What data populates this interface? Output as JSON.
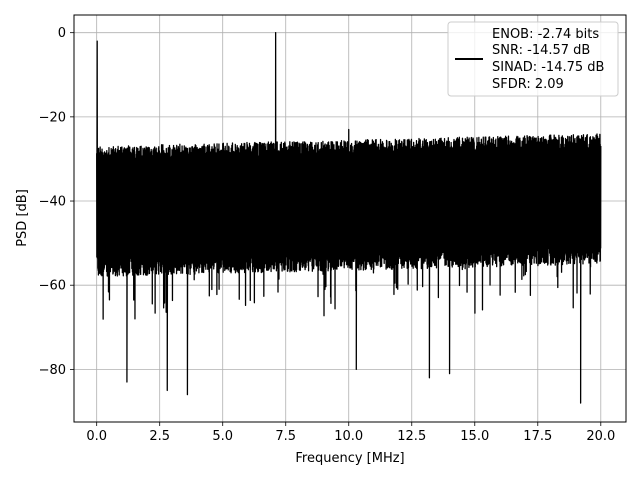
{
  "chart_data": {
    "type": "line",
    "title": "",
    "xlabel": "Frequency [MHz]",
    "ylabel": "PSD [dB]",
    "xlim": [
      -0.9,
      21.0
    ],
    "ylim": [
      -92.5,
      4.2
    ],
    "grid": true,
    "legend_position": "top-right",
    "x_ticks": [
      0.0,
      2.5,
      5.0,
      7.5,
      10.0,
      12.5,
      15.0,
      17.5,
      20.0
    ],
    "x_tick_labels": [
      "0.0",
      "2.5",
      "5.0",
      "7.5",
      "10.0",
      "12.5",
      "15.0",
      "17.5",
      "20.0"
    ],
    "y_ticks": [
      0,
      -20,
      -40,
      -60,
      -80
    ],
    "y_tick_labels": [
      "0",
      "−20",
      "−40",
      "−60",
      "−80"
    ],
    "series": [
      {
        "name": "ENOB: -2.74 bits\nSNR: -14.57 dB\nSINAD: -14.75 dB\nSFDR: 2.09",
        "color": "#000000",
        "x_range": [
          0.0,
          20.0
        ],
        "noise_floor_top_db": -27,
        "noise_floor_bottom_db": -60,
        "tones": [
          {
            "x": 0.02,
            "y": -2
          },
          {
            "x": 7.1,
            "y": 0
          },
          {
            "x": 10.0,
            "y": -23
          }
        ],
        "deep_nulls": [
          {
            "x": 1.2,
            "y": -83
          },
          {
            "x": 2.8,
            "y": -85
          },
          {
            "x": 3.6,
            "y": -86
          },
          {
            "x": 10.3,
            "y": -80
          },
          {
            "x": 13.2,
            "y": -82
          },
          {
            "x": 14.0,
            "y": -81
          },
          {
            "x": 19.2,
            "y": -88
          }
        ]
      }
    ]
  },
  "legend": {
    "lines": [
      "ENOB: -2.74 bits",
      "SNR: -14.57 dB",
      "SINAD: -14.75 dB",
      "SFDR: 2.09"
    ]
  }
}
